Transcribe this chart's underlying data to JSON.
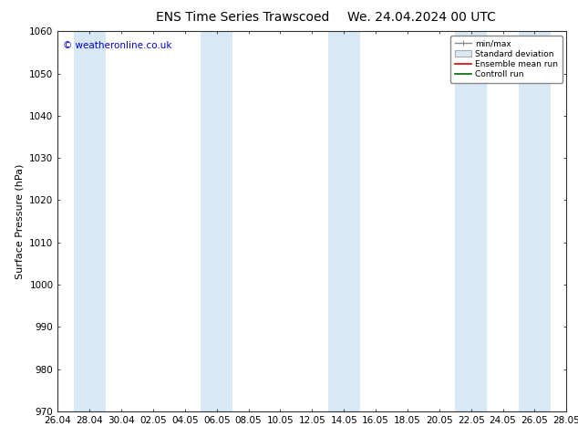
{
  "title_left": "ENS Time Series Trawscoed",
  "title_right": "We. 24.04.2024 00 UTC",
  "ylabel": "Surface Pressure (hPa)",
  "ylim": [
    970,
    1060
  ],
  "yticks": [
    970,
    980,
    990,
    1000,
    1010,
    1020,
    1030,
    1040,
    1050,
    1060
  ],
  "xtick_labels": [
    "26.04",
    "28.04",
    "30.04",
    "02.05",
    "04.05",
    "06.05",
    "08.05",
    "10.05",
    "12.05",
    "14.05",
    "16.05",
    "18.05",
    "20.05",
    "22.05",
    "24.05",
    "26.05",
    "28.05"
  ],
  "n_xticks": 17,
  "background_color": "#ffffff",
  "band_color": "#d8e8f4",
  "band_alpha": 1.0,
  "band_positions": [
    1,
    5,
    9,
    13,
    15
  ],
  "band_widths": [
    1,
    1,
    1,
    1,
    1
  ],
  "watermark": "© weatheronline.co.uk",
  "legend_entries": [
    "min/max",
    "Standard deviation",
    "Ensemble mean run",
    "Controll run"
  ],
  "title_fontsize": 10,
  "tick_fontsize": 7.5,
  "ylabel_fontsize": 8
}
